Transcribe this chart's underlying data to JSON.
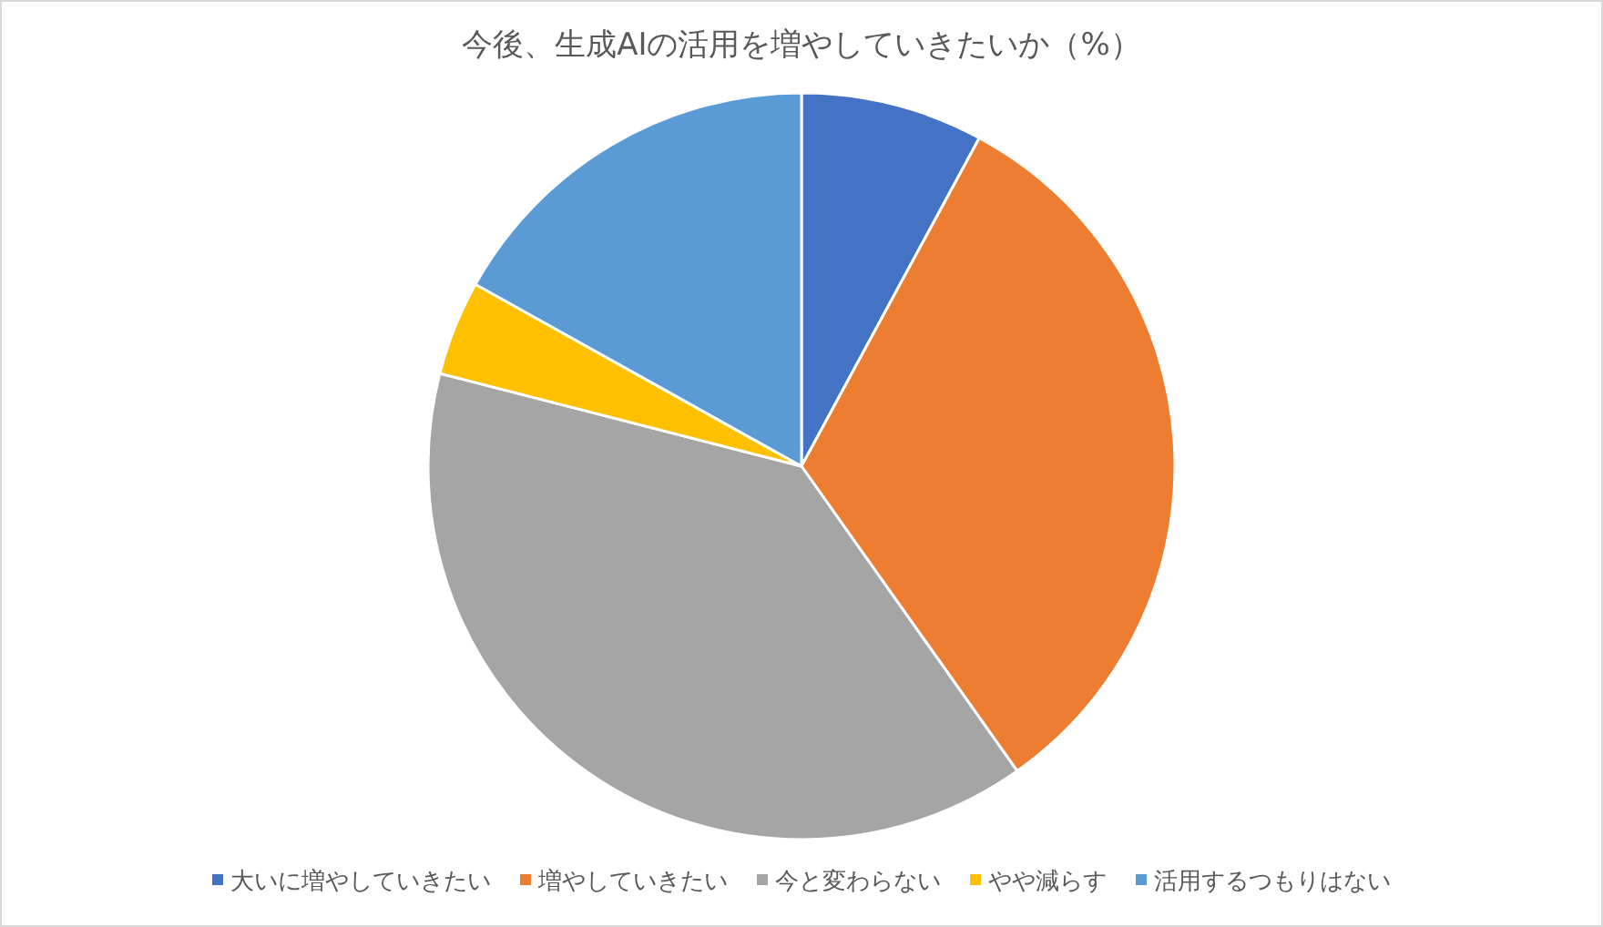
{
  "chart_data": {
    "type": "pie",
    "title": "今後、生成AIの活用を増やしていきたいか（%）",
    "categories": [
      "大いに増やしていきたい",
      "増やしていきたい",
      "今と変わらない",
      "やや減らす",
      "活用するつもりはない"
    ],
    "values": [
      7.9,
      32.3,
      38.8,
      4.1,
      16.9
    ],
    "colors": [
      "#4472c4",
      "#ed7d31",
      "#a5a5a5",
      "#ffc000",
      "#5b9bd5"
    ],
    "legend": "bottom"
  }
}
